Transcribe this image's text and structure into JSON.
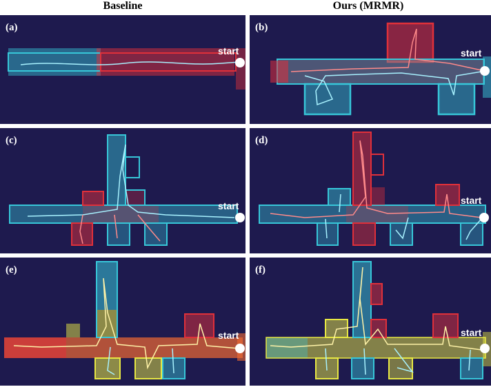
{
  "columns": {
    "left": "Baseline",
    "right": "Ours (MRMR)"
  },
  "panels": [
    {
      "label": "(a)",
      "start": "start"
    },
    {
      "label": "(b)",
      "start": "start"
    },
    {
      "label": "(c)",
      "start": "start"
    },
    {
      "label": "(d)",
      "start": "start"
    },
    {
      "label": "(e)",
      "start": "start"
    },
    {
      "label": "(f)",
      "start": "start"
    }
  ],
  "colors": {
    "background": "#1e1a4e",
    "robot_red": "#e0303a",
    "robot_cyan": "#37c7d9",
    "robot_yellow": "#e8e843",
    "robot_orange": "#f06a32"
  }
}
